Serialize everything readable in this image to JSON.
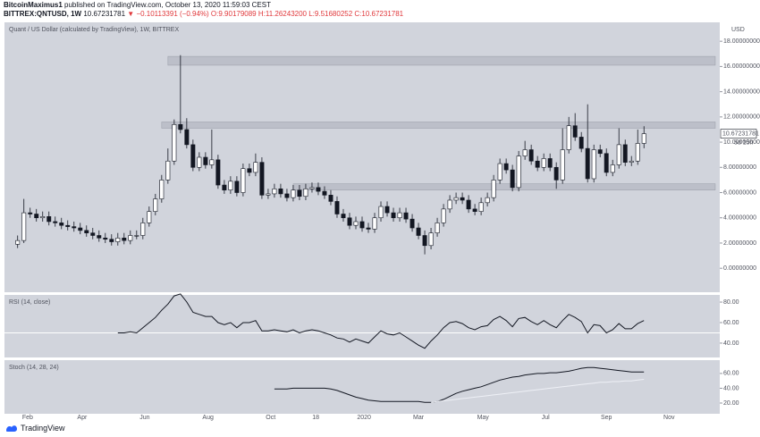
{
  "header": {
    "publisher": "BitcoinMaximus1",
    "published": "published on TradingView.com, October 13, 2020 11:59:03 CEST",
    "symbol": "BITTREX:QNTUSD, 1W",
    "last": "10.67231781",
    "change": "▼ −0.10113391 (−0.94%)",
    "o": "O:9.90179089",
    "h": "H:11.26243200",
    "l": "L:9.51680252",
    "c": "C:10.67231781"
  },
  "chart_data": [
    {
      "type": "candlestick",
      "title": "Quant / US Dollar (calculated by TradingView), 1W, BITTREX",
      "y_unit": "USD",
      "countdown": "5d 15h",
      "open": [
        1.9,
        2.2,
        4.4,
        4.3,
        4.0,
        4.1,
        3.7,
        3.6,
        3.4,
        3.3,
        3.2,
        3.0,
        2.8,
        2.6,
        2.4,
        2.3,
        2.1,
        2.4,
        2.2,
        2.6,
        2.6,
        3.6,
        4.5,
        5.5,
        7.0,
        8.5,
        11.4,
        11.0,
        9.8,
        8.0,
        8.8,
        8.2,
        8.6,
        6.6,
        6.2,
        6.9,
        6.0,
        7.9,
        7.6,
        8.4,
        5.8,
        5.9,
        6.3,
        5.9,
        5.6,
        6.2,
        5.7,
        6.3,
        6.4,
        6.1,
        5.8,
        5.3,
        4.3,
        4.0,
        3.4,
        3.7,
        3.2,
        3.1,
        4.0,
        4.9,
        4.4,
        4.0,
        4.4,
        3.9,
        3.2,
        2.6,
        1.8,
        2.8,
        3.6,
        4.7,
        5.4,
        5.6,
        5.4,
        4.7,
        4.5,
        5.2,
        5.6,
        7.0,
        8.3,
        7.8,
        6.4,
        8.9,
        9.4,
        8.5,
        8.0,
        8.7,
        8.0,
        7.0,
        9.4,
        11.3,
        10.4,
        9.5,
        7.1,
        9.4,
        9.1,
        7.6,
        8.2,
        9.8,
        8.4,
        8.5,
        9.90179089
      ],
      "high": [
        2.6,
        5.5,
        4.8,
        4.7,
        4.5,
        4.5,
        4.1,
        4.0,
        3.8,
        3.7,
        3.6,
        3.4,
        3.2,
        3.0,
        2.8,
        2.7,
        2.8,
        2.8,
        3.0,
        3.0,
        4.0,
        4.9,
        5.9,
        7.4,
        9.5,
        11.8,
        16.9,
        11.9,
        10.2,
        9.2,
        9.2,
        11.0,
        9.0,
        7.0,
        7.3,
        7.3,
        8.3,
        8.3,
        9.1,
        8.8,
        6.3,
        6.7,
        6.7,
        6.3,
        6.6,
        6.6,
        6.7,
        6.8,
        6.8,
        6.5,
        6.2,
        5.7,
        4.7,
        4.4,
        4.1,
        4.1,
        3.6,
        4.4,
        5.3,
        5.3,
        4.8,
        4.8,
        4.8,
        4.3,
        3.6,
        3.0,
        3.2,
        4.0,
        5.1,
        5.8,
        6.0,
        6.0,
        5.8,
        5.1,
        5.6,
        6.0,
        7.4,
        8.7,
        8.7,
        8.2,
        9.3,
        10.1,
        9.8,
        8.9,
        9.1,
        9.1,
        8.4,
        11.1,
        12.0,
        12.3,
        10.8,
        13.0,
        9.8,
        9.8,
        9.5,
        8.6,
        11.1,
        10.2,
        8.9,
        11.0,
        11.262432
      ],
      "low": [
        1.6,
        2.0,
        4.0,
        3.7,
        3.7,
        3.4,
        3.3,
        3.1,
        3.0,
        2.9,
        2.7,
        2.5,
        2.3,
        2.1,
        2.0,
        1.8,
        1.8,
        1.9,
        1.9,
        2.3,
        2.3,
        3.3,
        4.2,
        5.2,
        6.7,
        8.2,
        10.7,
        9.5,
        7.7,
        7.7,
        7.9,
        7.9,
        6.3,
        5.9,
        5.9,
        5.7,
        5.7,
        7.3,
        7.3,
        5.5,
        5.5,
        5.6,
        5.6,
        5.3,
        5.3,
        5.4,
        5.4,
        6.0,
        5.8,
        5.5,
        5.0,
        4.0,
        3.7,
        3.1,
        3.1,
        2.9,
        2.8,
        2.8,
        3.7,
        4.1,
        3.7,
        3.7,
        3.6,
        2.9,
        2.3,
        1.1,
        1.5,
        2.5,
        3.3,
        4.4,
        5.1,
        5.1,
        4.4,
        4.2,
        4.2,
        4.9,
        5.3,
        6.7,
        7.5,
        6.1,
        6.1,
        8.6,
        8.2,
        7.7,
        7.7,
        7.7,
        6.3,
        6.7,
        9.1,
        10.1,
        9.2,
        6.8,
        6.8,
        8.8,
        7.3,
        7.3,
        7.9,
        8.1,
        8.1,
        8.2,
        9.51680252
      ],
      "close": [
        2.2,
        4.4,
        4.3,
        4.0,
        4.1,
        3.7,
        3.6,
        3.4,
        3.3,
        3.2,
        3.0,
        2.8,
        2.6,
        2.4,
        2.3,
        2.1,
        2.4,
        2.2,
        2.6,
        2.6,
        3.6,
        4.5,
        5.5,
        7.0,
        8.5,
        11.4,
        11.0,
        9.8,
        8.0,
        8.8,
        8.2,
        8.6,
        6.6,
        6.2,
        6.9,
        6.0,
        7.9,
        7.6,
        8.4,
        5.8,
        5.9,
        6.3,
        5.9,
        5.6,
        6.2,
        5.7,
        6.3,
        6.4,
        6.1,
        5.8,
        5.3,
        4.3,
        4.0,
        3.4,
        3.7,
        3.2,
        3.1,
        4.0,
        4.9,
        4.4,
        4.0,
        4.4,
        3.9,
        3.2,
        2.6,
        1.8,
        2.8,
        3.6,
        4.7,
        5.4,
        5.6,
        5.4,
        4.7,
        4.5,
        5.2,
        5.6,
        7.0,
        8.3,
        7.8,
        6.4,
        8.9,
        9.4,
        8.5,
        8.0,
        8.7,
        8.0,
        7.0,
        9.4,
        11.3,
        10.4,
        9.5,
        7.1,
        9.4,
        9.1,
        7.6,
        8.2,
        9.8,
        8.4,
        8.5,
        9.9,
        10.67231781
      ],
      "up_color": "#ffffff",
      "down_color": "#131722",
      "zones": [
        {
          "low": 16.1,
          "high": 16.8,
          "from": 24
        },
        {
          "low": 11.1,
          "high": 11.6,
          "from": 23
        },
        {
          "low": 6.2,
          "high": 6.7,
          "from": 44
        }
      ],
      "xlim": [
        -2.1,
        112.1
      ],
      "ylim": [
        -1.9,
        19.5
      ],
      "yticks": [
        {
          "value": 0,
          "label": "0.00000000"
        },
        {
          "value": 2,
          "label": "2.00000000"
        },
        {
          "value": 4,
          "label": "4.00000000"
        },
        {
          "value": 6,
          "label": "6.00000000"
        },
        {
          "value": 8,
          "label": "8.00000000"
        },
        {
          "value": 10,
          "label": "10.00000000"
        },
        {
          "value": 12,
          "label": "12.00000000"
        },
        {
          "value": 14,
          "label": "14.00000000"
        },
        {
          "value": 16,
          "label": "16.00000000"
        },
        {
          "value": 18,
          "label": "18.00000000"
        }
      ],
      "xticks": [
        {
          "value": 1.6,
          "label": "Feb"
        },
        {
          "value": 10.3,
          "label": "Apr"
        },
        {
          "value": 20.3,
          "label": "Jun"
        },
        {
          "value": 30.4,
          "label": "Aug"
        },
        {
          "value": 40.4,
          "label": "Oct"
        },
        {
          "value": 47.6,
          "label": "18"
        },
        {
          "value": 55.3,
          "label": "2020"
        },
        {
          "value": 64,
          "label": "Mar"
        },
        {
          "value": 74.3,
          "label": "May"
        },
        {
          "value": 84.3,
          "label": "Jul"
        },
        {
          "value": 94,
          "label": "Sep"
        },
        {
          "value": 104,
          "label": "Nov"
        }
      ]
    },
    {
      "type": "line",
      "title": "RSI (14, close)",
      "color": "#131722",
      "hline": 50,
      "xlim": [
        -2.1,
        112.1
      ],
      "ylim": [
        26,
        87
      ],
      "yticks": [
        {
          "value": 40,
          "label": "40.00"
        },
        {
          "value": 60,
          "label": "60.00"
        },
        {
          "value": 80,
          "label": "80.00"
        }
      ],
      "values": [
        null,
        null,
        null,
        null,
        null,
        null,
        null,
        null,
        null,
        null,
        null,
        null,
        null,
        null,
        null,
        null,
        50,
        50,
        51,
        50,
        55,
        60,
        65,
        72,
        78,
        86,
        88,
        80,
        70,
        68,
        66,
        66,
        60,
        58,
        60,
        55,
        60,
        60,
        62,
        52,
        52,
        53,
        52,
        51,
        53,
        50,
        52,
        53,
        52,
        50,
        48,
        45,
        44,
        41,
        44,
        42,
        40,
        46,
        52,
        49,
        48,
        50,
        46,
        42,
        38,
        35,
        42,
        48,
        55,
        60,
        61,
        59,
        55,
        53,
        56,
        57,
        63,
        66,
        62,
        56,
        64,
        65,
        61,
        58,
        62,
        58,
        55,
        62,
        68,
        65,
        61,
        50,
        58,
        57,
        50,
        53,
        59,
        54,
        54,
        59,
        62
      ]
    },
    {
      "type": "line",
      "title": "Stoch (14, 28, 24)",
      "xlim": [
        -2.1,
        112.1
      ],
      "ylim": [
        5.5,
        78
      ],
      "yticks": [
        {
          "value": 20,
          "label": "20.00"
        },
        {
          "value": 40,
          "label": "40.00"
        },
        {
          "value": 60,
          "label": "60.00"
        }
      ],
      "series": [
        {
          "color": "#131722",
          "values": [
            null,
            null,
            null,
            null,
            null,
            null,
            null,
            null,
            null,
            null,
            null,
            null,
            null,
            null,
            null,
            null,
            null,
            null,
            null,
            null,
            null,
            null,
            null,
            null,
            null,
            null,
            null,
            null,
            null,
            null,
            null,
            null,
            null,
            null,
            null,
            null,
            null,
            null,
            null,
            null,
            null,
            39,
            39,
            39,
            40,
            40,
            40,
            40,
            40,
            40,
            39,
            37,
            34,
            31,
            28,
            26,
            24,
            23,
            22,
            22,
            22,
            22,
            22,
            22,
            22,
            21,
            21,
            22,
            25,
            29,
            33,
            36,
            38,
            40,
            42,
            45,
            48,
            51,
            53,
            55,
            56,
            58,
            59,
            60,
            60,
            61,
            61,
            62,
            63,
            65,
            67,
            68,
            68,
            67,
            66,
            65,
            64,
            63,
            62,
            62,
            62
          ]
        },
        {
          "color": "#eef0f6",
          "values": [
            null,
            null,
            null,
            null,
            null,
            null,
            null,
            null,
            null,
            null,
            null,
            null,
            null,
            null,
            null,
            null,
            null,
            null,
            null,
            null,
            null,
            null,
            null,
            null,
            null,
            null,
            null,
            null,
            null,
            null,
            null,
            null,
            null,
            null,
            null,
            null,
            null,
            null,
            null,
            null,
            null,
            null,
            null,
            null,
            null,
            null,
            null,
            null,
            null,
            null,
            null,
            null,
            null,
            null,
            null,
            null,
            null,
            null,
            null,
            null,
            null,
            null,
            null,
            null,
            null,
            null,
            21,
            22,
            23,
            24,
            25,
            26,
            27,
            28,
            29,
            30,
            31,
            32,
            33,
            34,
            35,
            36,
            37,
            38,
            39,
            40,
            41,
            42,
            43,
            44,
            45,
            46,
            47,
            48,
            48,
            49,
            49,
            50,
            50,
            51,
            52
          ]
        }
      ]
    }
  ],
  "footer": {
    "logo": "TradingView"
  }
}
